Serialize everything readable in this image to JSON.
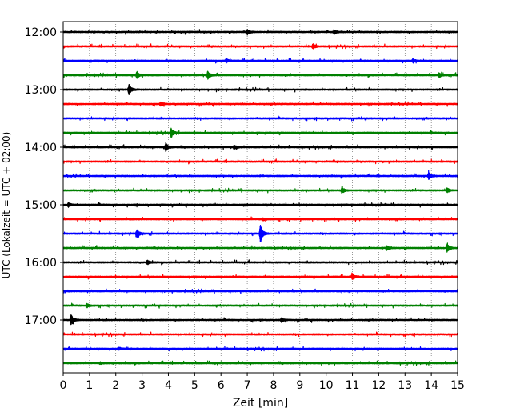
{
  "chart_data": {
    "type": "line",
    "title": "",
    "xlabel": "Zeit  [min]",
    "ylabel": "UTC (Lokalzeit = UTC + 02:00)",
    "xlim": [
      0,
      15
    ],
    "x_ticks": [
      "0",
      "1",
      "2",
      "3",
      "4",
      "5",
      "6",
      "7",
      "8",
      "9",
      "10",
      "11",
      "12",
      "13",
      "14",
      "15"
    ],
    "row_interval_minutes": 15,
    "hour_labels": [
      "12:00",
      "13:00",
      "14:00",
      "15:00",
      "16:00",
      "17:00"
    ],
    "grid": "vertical-dotted",
    "color_cycle": [
      "#000000",
      "#ff0000",
      "#0000ff",
      "#008000"
    ],
    "rows": [
      {
        "start": "12:00",
        "color": "#000000",
        "events": [
          {
            "t": 7.0,
            "amp": 0.35
          },
          {
            "t": 10.3,
            "amp": 0.3
          }
        ]
      },
      {
        "start": "12:15",
        "color": "#ff0000",
        "events": [
          {
            "t": 9.5,
            "amp": 0.35
          }
        ]
      },
      {
        "start": "12:30",
        "color": "#0000ff",
        "events": [
          {
            "t": 6.2,
            "amp": 0.3
          },
          {
            "t": 13.3,
            "amp": 0.3
          }
        ]
      },
      {
        "start": "12:45",
        "color": "#008000",
        "events": [
          {
            "t": 2.8,
            "amp": 0.5
          },
          {
            "t": 5.5,
            "amp": 0.55
          },
          {
            "t": 14.3,
            "amp": 0.3
          }
        ]
      },
      {
        "start": "13:00",
        "color": "#000000",
        "events": [
          {
            "t": 2.5,
            "amp": 0.7
          }
        ]
      },
      {
        "start": "13:15",
        "color": "#ff0000",
        "events": [
          {
            "t": 3.7,
            "amp": 0.25
          }
        ]
      },
      {
        "start": "13:30",
        "color": "#0000ff",
        "events": []
      },
      {
        "start": "13:45",
        "color": "#008000",
        "events": [
          {
            "t": 4.1,
            "amp": 0.7
          }
        ]
      },
      {
        "start": "14:00",
        "color": "#000000",
        "events": [
          {
            "t": 3.9,
            "amp": 0.6
          },
          {
            "t": 6.5,
            "amp": 0.3
          }
        ]
      },
      {
        "start": "14:15",
        "color": "#ff0000",
        "events": []
      },
      {
        "start": "14:30",
        "color": "#0000ff",
        "events": [
          {
            "t": 13.9,
            "amp": 0.45
          }
        ]
      },
      {
        "start": "14:45",
        "color": "#008000",
        "events": [
          {
            "t": 10.6,
            "amp": 0.4
          },
          {
            "t": 14.6,
            "amp": 0.3
          }
        ]
      },
      {
        "start": "15:00",
        "color": "#000000",
        "events": [
          {
            "t": 0.2,
            "amp": 0.3
          }
        ]
      },
      {
        "start": "15:15",
        "color": "#ff0000",
        "events": [
          {
            "t": 7.6,
            "amp": 0.2
          }
        ]
      },
      {
        "start": "15:30",
        "color": "#0000ff",
        "events": [
          {
            "t": 2.8,
            "amp": 0.55
          },
          {
            "t": 7.5,
            "amp": 1.3
          }
        ]
      },
      {
        "start": "15:45",
        "color": "#008000",
        "events": [
          {
            "t": 14.6,
            "amp": 0.6
          },
          {
            "t": 12.3,
            "amp": 0.3
          }
        ]
      },
      {
        "start": "16:00",
        "color": "#000000",
        "events": [
          {
            "t": 3.2,
            "amp": 0.3
          }
        ]
      },
      {
        "start": "16:15",
        "color": "#ff0000",
        "events": [
          {
            "t": 11.0,
            "amp": 0.4
          }
        ]
      },
      {
        "start": "16:30",
        "color": "#0000ff",
        "events": []
      },
      {
        "start": "16:45",
        "color": "#008000",
        "events": [
          {
            "t": 0.9,
            "amp": 0.25
          }
        ]
      },
      {
        "start": "17:00",
        "color": "#000000",
        "events": [
          {
            "t": 0.3,
            "amp": 0.75
          },
          {
            "t": 8.3,
            "amp": 0.3
          }
        ]
      },
      {
        "start": "17:15",
        "color": "#ff0000",
        "events": []
      },
      {
        "start": "17:30",
        "color": "#0000ff",
        "events": [
          {
            "t": 2.1,
            "amp": 0.2
          }
        ]
      },
      {
        "start": "17:45",
        "color": "#008000",
        "events": [
          {
            "t": 1.4,
            "amp": 0.15
          }
        ]
      }
    ]
  }
}
